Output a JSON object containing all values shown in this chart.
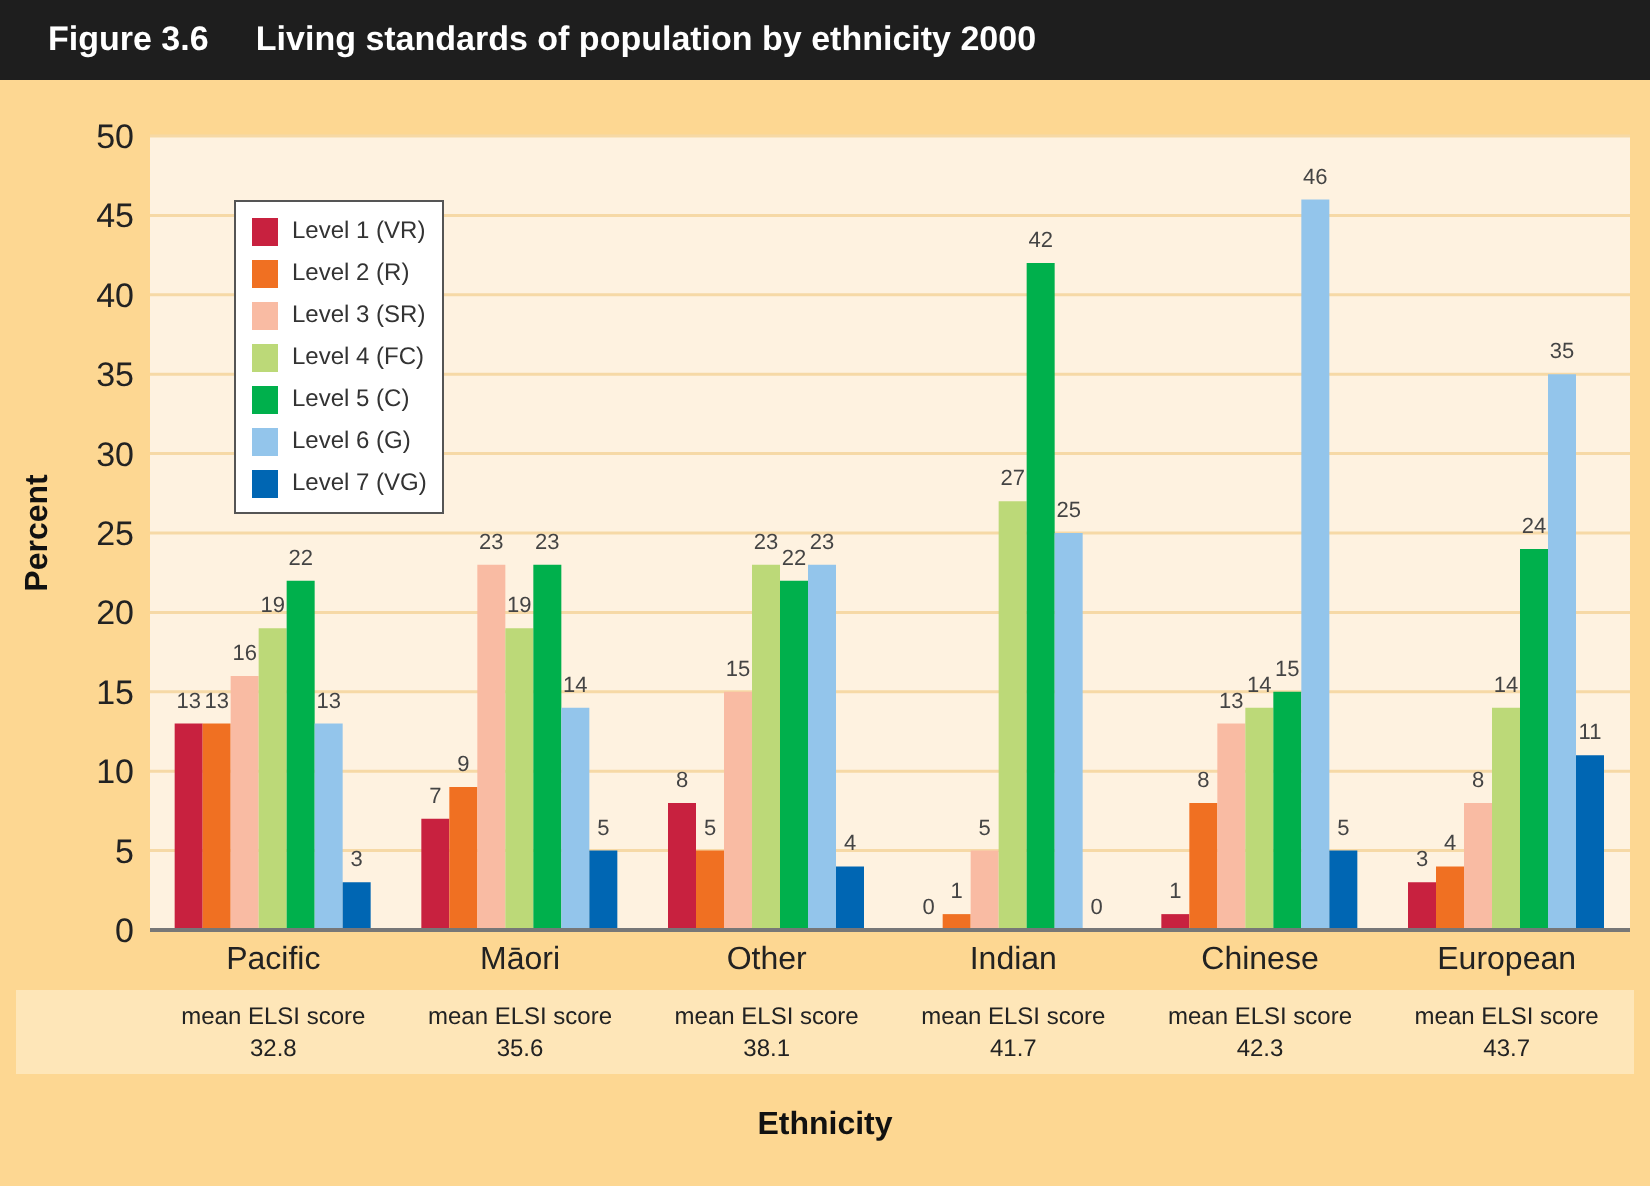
{
  "chart_data": {
    "type": "bar",
    "title": "Figure 3.6     Living standards of population by ethnicity 2000",
    "xlabel": "Ethnicity",
    "ylabel": "Percent",
    "categories": [
      "Pacific",
      "Māori",
      "Other",
      "Indian",
      "Chinese",
      "European"
    ],
    "series": [
      {
        "name": "Level 1 (VR)",
        "color": "#c8213f",
        "values": [
          13,
          7,
          8,
          0,
          1,
          3
        ]
      },
      {
        "name": "Level 2 (R)",
        "color": "#f07022",
        "values": [
          13,
          9,
          5,
          1,
          8,
          4
        ]
      },
      {
        "name": "Level 3 (SR)",
        "color": "#f9bba3",
        "values": [
          16,
          23,
          15,
          5,
          13,
          8
        ]
      },
      {
        "name": "Level 4 (FC)",
        "color": "#bcd978",
        "values": [
          19,
          19,
          23,
          27,
          14,
          14
        ]
      },
      {
        "name": "Level 5 (C)",
        "color": "#00b04c",
        "values": [
          22,
          23,
          22,
          42,
          15,
          24
        ]
      },
      {
        "name": "Level 6 (G)",
        "color": "#93c5eb",
        "values": [
          13,
          14,
          23,
          25,
          46,
          35
        ]
      },
      {
        "name": "Level 7 (VG)",
        "color": "#0066b3",
        "values": [
          3,
          5,
          4,
          0,
          5,
          11
        ]
      }
    ],
    "ylim": [
      0,
      50
    ],
    "yticks": [
      0,
      5,
      10,
      15,
      20,
      25,
      30,
      35,
      40,
      45,
      50
    ],
    "grid": "y",
    "legend": "top left",
    "data_labels": true,
    "annotations": [
      "mean ELSI score 32.8",
      "mean ELSI score 35.6",
      "mean ELSI score 38.1",
      "mean ELSI score 41.7",
      "mean ELSI score 42.3",
      "mean ELSI score 43.7"
    ]
  }
}
